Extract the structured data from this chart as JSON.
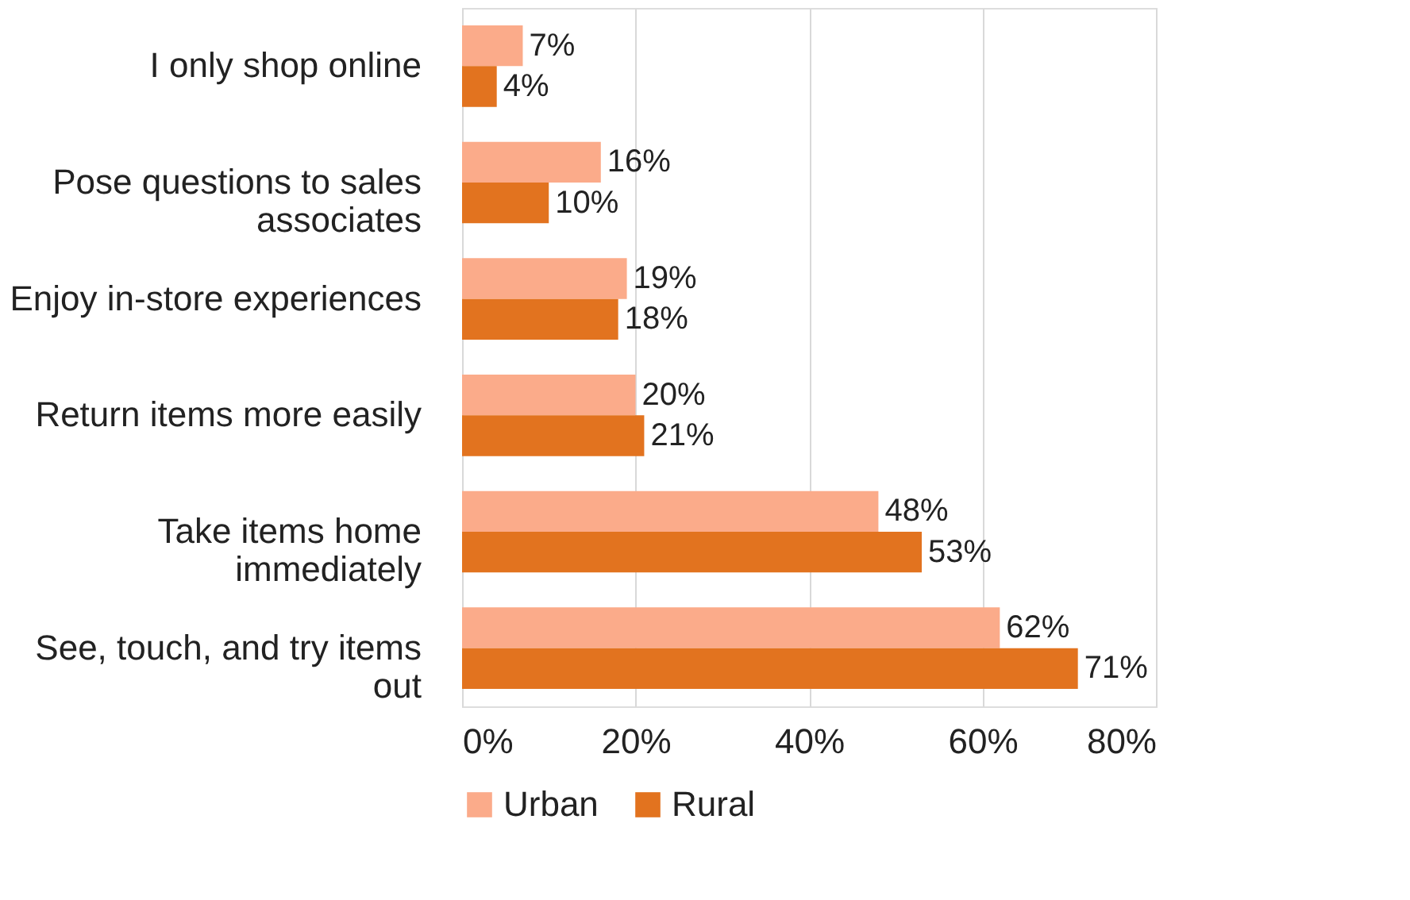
{
  "chart_data": {
    "type": "bar",
    "orientation": "horizontal",
    "categories": [
      "I only shop online",
      "Pose questions to sales\nassociates",
      "Enjoy in-store experiences",
      "Return items more easily",
      "Take items home\nimmediately",
      "See, touch, and try items\nout"
    ],
    "series": [
      {
        "name": "Urban",
        "color": "#fbab8a",
        "values": [
          7,
          16,
          19,
          20,
          48,
          62
        ],
        "value_labels": [
          "7%",
          "16%",
          "19%",
          "20%",
          "48%",
          "62%"
        ]
      },
      {
        "name": "Rural",
        "color": "#e2731f",
        "values": [
          4,
          10,
          18,
          21,
          53,
          71
        ],
        "value_labels": [
          "4%",
          "10%",
          "18%",
          "21%",
          "53%",
          "71%"
        ]
      }
    ],
    "xlim": [
      0,
      80
    ],
    "xticks": [
      {
        "value": 0,
        "label": "0%"
      },
      {
        "value": 20,
        "label": "20%"
      },
      {
        "value": 40,
        "label": "40%"
      },
      {
        "value": 60,
        "label": "60%"
      },
      {
        "value": 80,
        "label": "80%"
      }
    ],
    "grid": "x",
    "legend": "bottom"
  }
}
